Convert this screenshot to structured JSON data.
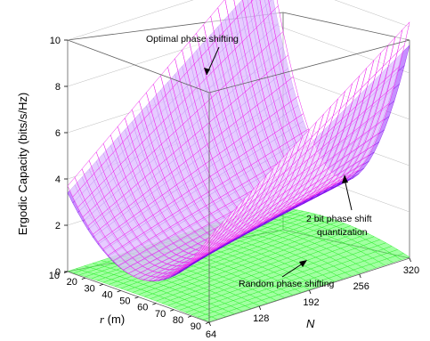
{
  "chart_data": {
    "type": "surface3d",
    "zlabel": "Ergodic Capacity (bits/s/Hz)",
    "xlabel_var": "r",
    "xlabel_unit": " (m)",
    "ylabel": "N",
    "x_ticks": [
      "10",
      "20",
      "30",
      "40",
      "50",
      "60",
      "70",
      "80",
      "90"
    ],
    "y_ticks": [
      "64",
      "128",
      "192",
      "256",
      "320"
    ],
    "z_ticks": [
      "0",
      "2",
      "4",
      "6",
      "8",
      "10"
    ],
    "xlim": [
      10,
      90
    ],
    "ylim": [
      64,
      320
    ],
    "zlim": [
      0,
      10
    ],
    "grid": true,
    "series": [
      {
        "name": "Optimal phase shifting",
        "color": "#ff33ff",
        "corner_values": {
          "r10_N64": 3.7,
          "r10_N320": 10.2,
          "r50_N64": 0.8,
          "r90_N64": 3.7,
          "r90_N320": 7.6
        }
      },
      {
        "name": "2 bit phase shift quantization",
        "color": "#8800ff",
        "corner_values": {
          "r10_N64": 3.4,
          "r10_N320": 9.6,
          "r50_N64": 0.8,
          "r90_N64": 3.4,
          "r90_N320": 7.0
        }
      },
      {
        "name": "Random phase shifting",
        "color": "#33ff33",
        "corner_values": {
          "r10_N64": 0.0,
          "r50_N64": 0.1,
          "r50_N320": 0.5,
          "r90_N64": 0.0
        }
      }
    ],
    "annotations": {
      "optimal": "Optimal phase shifting",
      "quant_line1": "2 bit phase shift",
      "quant_line2": "quantization",
      "random": "Random phase shifting"
    }
  }
}
